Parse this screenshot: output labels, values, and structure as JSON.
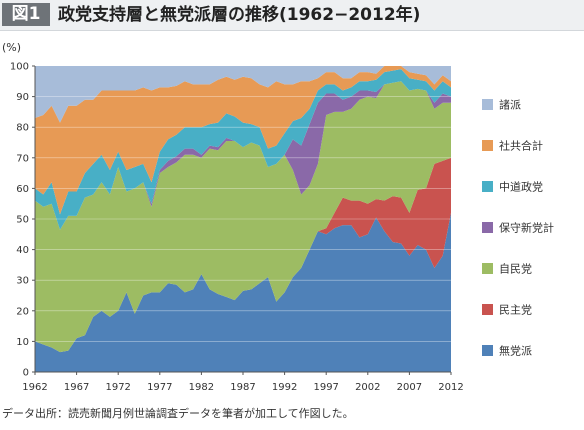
{
  "header": {
    "figure_label": "図1",
    "title": "政党支持層と無党派層の推移(1962−2012年)"
  },
  "source": "データ出所：読売新聞月例世論調査データを筆者が加工して作図した。",
  "colors": {
    "無党派": "#4f81b8",
    "民主党": "#c9534f",
    "自民党": "#9dbc63",
    "保守新党計": "#8a69a8",
    "中道政党": "#48afc6",
    "社共合計": "#e79a55",
    "諸派": "#a7bcd9"
  },
  "chart_data": {
    "type": "area",
    "stacked": true,
    "title": "政党支持層と無党派層の推移(1962−2012年)",
    "ylabel": "(%)",
    "xlabel": "",
    "xlim": [
      1962,
      2012
    ],
    "ylim": [
      0,
      100
    ],
    "yticks": [
      0,
      10,
      20,
      30,
      40,
      50,
      60,
      70,
      80,
      90,
      100
    ],
    "xticks": [
      1962,
      1967,
      1972,
      1977,
      1982,
      1987,
      1992,
      1997,
      2002,
      2007,
      2012
    ],
    "grid": "horizontal",
    "legend_position": "right",
    "x": [
      1962,
      1963,
      1964,
      1965,
      1966,
      1967,
      1968,
      1969,
      1970,
      1971,
      1972,
      1973,
      1974,
      1975,
      1976,
      1977,
      1978,
      1979,
      1980,
      1981,
      1982,
      1983,
      1984,
      1985,
      1986,
      1987,
      1988,
      1989,
      1990,
      1991,
      1992,
      1993,
      1994,
      1995,
      1996,
      1997,
      1998,
      1999,
      2000,
      2001,
      2002,
      2003,
      2004,
      2005,
      2006,
      2007,
      2008,
      2009,
      2010,
      2011,
      2012
    ],
    "series": [
      {
        "name": "無党派",
        "values": [
          10,
          9,
          8,
          6.5,
          7,
          11,
          12,
          18,
          20,
          18,
          20,
          26,
          19,
          25,
          26,
          26,
          29,
          28.5,
          26,
          27,
          32,
          27,
          25.5,
          24.5,
          23.5,
          26.5,
          27,
          29,
          31,
          23,
          26,
          31,
          34,
          40,
          46,
          45,
          47,
          48,
          48,
          44,
          45,
          50.5,
          46,
          42.5,
          42,
          38,
          41.5,
          40,
          34,
          38,
          52
        ]
      },
      {
        "name": "民主党",
        "values": [
          0,
          0,
          0,
          0,
          0,
          0,
          0,
          0,
          0,
          0,
          0,
          0,
          0,
          0,
          0,
          0,
          0,
          0,
          0,
          0,
          0,
          0,
          0,
          0,
          0,
          0,
          0,
          0,
          0,
          0,
          0,
          0,
          0,
          0,
          0,
          2,
          5,
          9,
          8,
          12,
          10,
          6,
          10,
          15,
          15,
          14,
          18,
          20,
          34,
          31,
          18
        ]
      },
      {
        "name": "自民党",
        "values": [
          46,
          45,
          47,
          40,
          44,
          40,
          45,
          40,
          42,
          40,
          47,
          33,
          41,
          37,
          28,
          39,
          38,
          40,
          45,
          44,
          38,
          46,
          47,
          51,
          52,
          47,
          48,
          45,
          36,
          45,
          45,
          35,
          24,
          21,
          22,
          37,
          33,
          28,
          30,
          33,
          35,
          33,
          38,
          37,
          38,
          40,
          33,
          32,
          18,
          19,
          18
        ]
      },
      {
        "name": "保守新党計",
        "values": [
          0,
          0,
          0,
          0,
          0,
          0,
          0,
          0,
          0,
          0,
          0,
          0,
          0,
          0,
          1,
          1,
          2,
          2,
          2,
          2,
          1,
          1,
          1,
          1,
          0,
          0,
          0,
          0,
          0,
          0,
          0,
          10,
          16,
          20,
          20,
          7,
          6,
          4,
          4,
          3,
          2,
          2,
          0,
          0,
          0,
          0,
          0,
          0,
          2,
          3,
          2
        ]
      },
      {
        "name": "中道政党",
        "values": [
          4,
          4,
          7,
          5,
          8,
          8,
          8,
          10,
          9,
          8,
          5,
          7,
          7,
          6,
          7,
          6,
          7,
          7,
          7,
          7,
          9,
          7,
          8,
          8,
          8,
          8,
          6,
          6,
          6,
          6,
          7,
          6,
          9,
          5,
          4,
          3,
          3,
          3,
          3,
          3,
          3,
          4,
          4,
          4,
          4,
          4,
          3,
          3,
          4,
          4,
          3
        ]
      },
      {
        "name": "社共合計",
        "values": [
          23,
          26,
          25,
          30,
          28,
          28,
          24,
          21,
          21,
          26,
          20,
          26,
          25,
          25,
          30,
          21,
          17,
          16,
          15,
          14,
          14,
          13,
          14,
          12,
          12,
          15,
          15,
          14,
          20,
          21,
          16,
          12,
          12,
          9,
          4,
          4,
          4,
          4,
          3,
          3,
          3,
          2,
          2,
          2,
          2,
          2,
          2,
          2,
          2,
          2,
          2
        ]
      },
      {
        "name": "諸派",
        "values": [
          17,
          16,
          13,
          18.5,
          13,
          13,
          11,
          11,
          8,
          8,
          8,
          8,
          8,
          7,
          8,
          7,
          7,
          6.5,
          5,
          6,
          6,
          6,
          4.5,
          3.5,
          4.5,
          3.5,
          4,
          6,
          7,
          5,
          6,
          6,
          5,
          5,
          4,
          2,
          2,
          8,
          4,
          5,
          2,
          2.5,
          0,
          -0.5,
          -1,
          2,
          2.5,
          3,
          8,
          3,
          5
        ]
      }
    ]
  },
  "legend_order": [
    "諸派",
    "社共合計",
    "中道政党",
    "保守新党計",
    "自民党",
    "民主党",
    "無党派"
  ]
}
